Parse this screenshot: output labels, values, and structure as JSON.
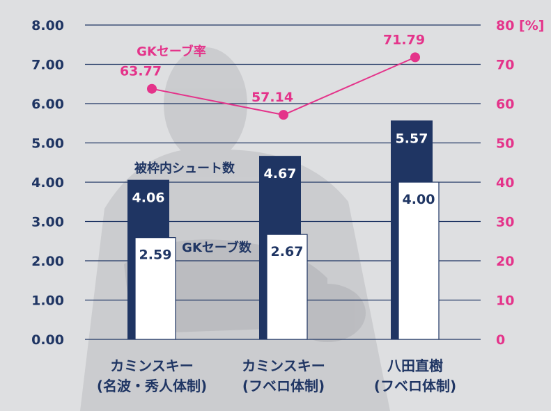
{
  "chart_data": {
    "type": "bar",
    "categories": [
      [
        "カミンスキー",
        "(名波・秀人体制)"
      ],
      [
        "カミンスキー",
        "(フベロ体制)"
      ],
      [
        "八田直樹",
        "(フベロ体制)"
      ]
    ],
    "series": [
      {
        "name": "被枠内シュート数",
        "type": "bar",
        "axis": "left",
        "values": [
          4.06,
          4.67,
          5.57
        ],
        "labels": [
          "4.06",
          "4.67",
          "5.57"
        ],
        "color": "#1f3563"
      },
      {
        "name": "GKセーブ数",
        "type": "bar",
        "axis": "left",
        "values": [
          2.59,
          2.67,
          4.0
        ],
        "labels": [
          "2.59",
          "2.67",
          "4.00"
        ],
        "color": "#ffffff"
      },
      {
        "name": "GKセーブ率",
        "type": "line",
        "axis": "right",
        "values": [
          63.77,
          57.14,
          71.79
        ],
        "labels": [
          "63.77",
          "57.14",
          "71.79"
        ],
        "color": "#e4338a"
      }
    ],
    "y_left": {
      "ticks": [
        "0.00",
        "1.00",
        "2.00",
        "3.00",
        "4.00",
        "5.00",
        "6.00",
        "7.00",
        "8.00"
      ],
      "ylim": [
        0,
        8
      ]
    },
    "y_right": {
      "ticks": [
        "0",
        "10",
        "20",
        "30",
        "40",
        "50",
        "60",
        "70",
        "80 [%]"
      ],
      "ylim": [
        0,
        80
      ]
    },
    "grid": true,
    "colors": {
      "navy": "#1f3563",
      "pink": "#e4338a",
      "background": "#dedfe1"
    }
  }
}
